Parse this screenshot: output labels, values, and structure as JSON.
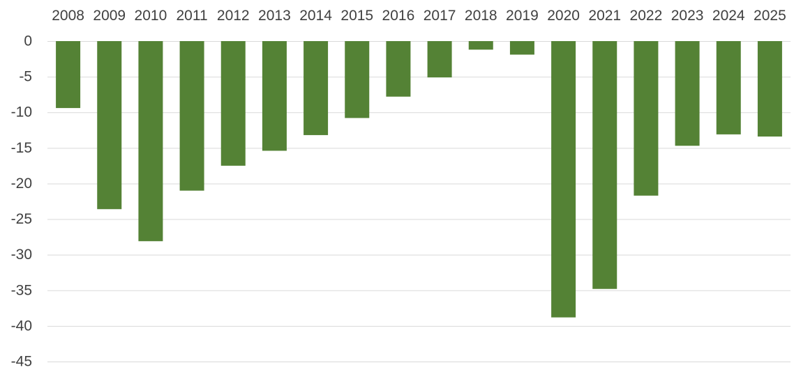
{
  "chart_data": {
    "type": "bar",
    "categories": [
      "2008",
      "2009",
      "2010",
      "2011",
      "2012",
      "2013",
      "2014",
      "2015",
      "2016",
      "2017",
      "2018",
      "2019",
      "2020",
      "2021",
      "2022",
      "2023",
      "2024",
      "2025"
    ],
    "values": [
      -9.4,
      -23.6,
      -28.1,
      -21.0,
      -17.5,
      -15.4,
      -13.2,
      -10.8,
      -7.8,
      -5.1,
      -1.2,
      -1.9,
      -38.8,
      -34.8,
      -21.7,
      -14.7,
      -13.1,
      -13.4
    ],
    "title": "",
    "xlabel": "",
    "ylabel": "",
    "ylim": [
      -45,
      0
    ],
    "yticks": [
      "0",
      "-5",
      "-10",
      "-15",
      "-20",
      "-25",
      "-30",
      "-35",
      "-40",
      "-45"
    ],
    "grid": true,
    "x_axis_position": "top",
    "bar_color": "#548235"
  }
}
